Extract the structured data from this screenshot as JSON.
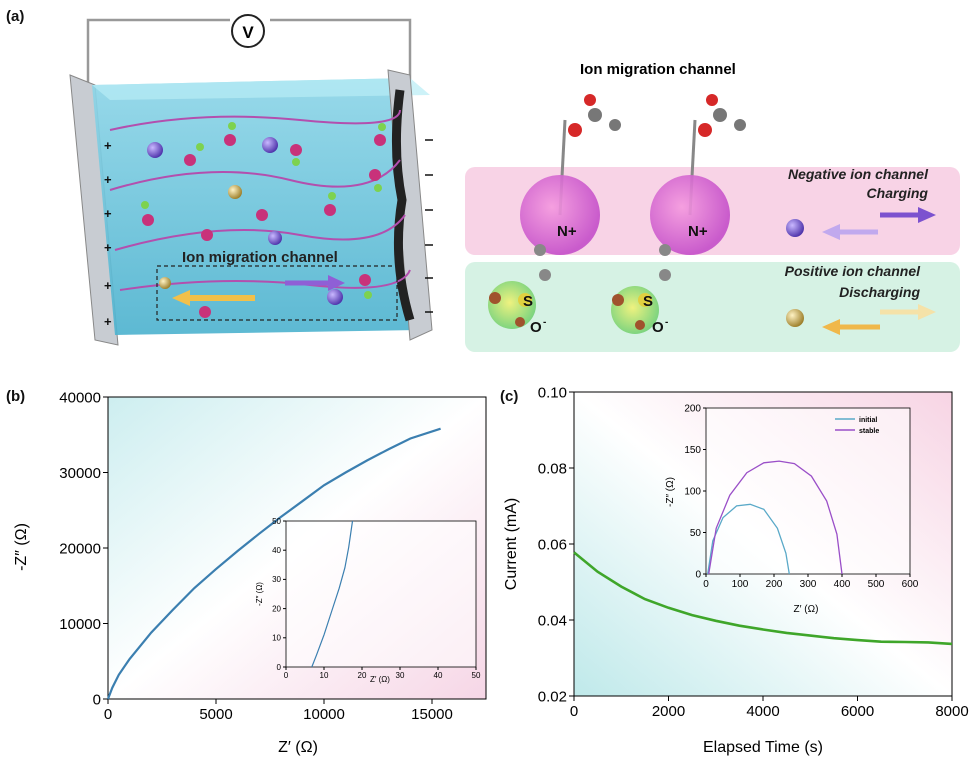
{
  "panel_labels": {
    "a": "(a)",
    "b": "(b)",
    "c": "(c)"
  },
  "panel_a": {
    "voltmeter": "V",
    "ion_channel_label": "Ion migration channel",
    "plus_signs": [
      "+",
      "+",
      "+",
      "+",
      "+",
      "+"
    ],
    "right_title": "Ion migration channel",
    "negative_channel": "Negative ion channel",
    "charging": "Charging",
    "positive_channel": "Positive ion channel",
    "discharging": "Discharging",
    "n_plus": "N+",
    "s_label": "S",
    "o_minus": "O",
    "minus_sup": "-"
  },
  "panel_b": {
    "ylabel": "-Z″ (Ω)",
    "xlabel": "Z′ (Ω)",
    "inset_ylabel": "-Z″ (Ω)",
    "inset_xlabel": "Z′ (Ω)"
  },
  "panel_c": {
    "ylabel": "Current (mA)",
    "xlabel": "Elapsed Time (s)",
    "inset_ylabel": "-Z″ (Ω)",
    "inset_xlabel": "Z′ (Ω)",
    "legend": [
      "initial",
      "stable"
    ]
  },
  "colors": {
    "nyquist_line": "#3b7fb0",
    "current_line": "#3fa62a",
    "initial": "#5aa9c8",
    "stable": "#9a4fc8",
    "negative_band": "#f8d3e6",
    "positive_band": "#d6f2e4"
  },
  "chart_data": [
    {
      "id": "b-main",
      "type": "line",
      "x": [
        0,
        200,
        500,
        1000,
        2000,
        3000,
        4000,
        5000,
        6000,
        7000,
        8000,
        9000,
        10000,
        11000,
        12000,
        13000,
        14000,
        15400
      ],
      "y": [
        0,
        1500,
        3200,
        5300,
        8800,
        11800,
        14700,
        17200,
        19600,
        21900,
        24100,
        26200,
        28300,
        30000,
        31600,
        33100,
        34500,
        35800
      ],
      "xlim": [
        0,
        17500
      ],
      "ylim": [
        0,
        40000
      ],
      "xticks": [
        0,
        5000,
        10000,
        15000
      ],
      "yticks": [
        0,
        10000,
        20000,
        30000,
        40000
      ],
      "xlabel": "Z′ (Ω)",
      "ylabel": "-Z″ (Ω)"
    },
    {
      "id": "b-inset",
      "type": "line",
      "x": [
        6.8,
        8,
        10,
        12,
        14,
        15.5,
        16.5,
        17.5
      ],
      "y": [
        0,
        4,
        11,
        19,
        27,
        34,
        41,
        50
      ],
      "xlim": [
        0,
        50
      ],
      "ylim": [
        0,
        50
      ],
      "xticks": [
        0,
        10,
        20,
        30,
        40,
        50
      ],
      "yticks": [
        0,
        10,
        20,
        30,
        40,
        50
      ],
      "xlabel": "Z′ (Ω)",
      "ylabel": "-Z″ (Ω)"
    },
    {
      "id": "c-main",
      "type": "line",
      "x": [
        0,
        500,
        1000,
        1500,
        2000,
        2500,
        3000,
        3500,
        4000,
        4500,
        5000,
        5500,
        6000,
        6500,
        7000,
        7500,
        8000
      ],
      "y": [
        0.0578,
        0.0527,
        0.0488,
        0.0455,
        0.0432,
        0.0413,
        0.0398,
        0.0385,
        0.0375,
        0.0366,
        0.0359,
        0.0352,
        0.0347,
        0.0343,
        0.0342,
        0.0341,
        0.0337
      ],
      "xlim": [
        0,
        8000
      ],
      "ylim": [
        0.02,
        0.1
      ],
      "xticks": [
        0,
        2000,
        4000,
        6000,
        8000
      ],
      "yticks": [
        0.02,
        0.04,
        0.06,
        0.08,
        0.1
      ],
      "xlabel": "Elapsed Time (s)",
      "ylabel": "Current (mA)"
    },
    {
      "id": "c-inset",
      "type": "line",
      "xlim": [
        0,
        600
      ],
      "ylim": [
        0,
        200
      ],
      "xticks": [
        0,
        100,
        200,
        300,
        400,
        500,
        600
      ],
      "yticks": [
        0,
        50,
        100,
        150,
        200
      ],
      "xlabel": "Z′ (Ω)",
      "ylabel": "-Z″ (Ω)",
      "series": [
        {
          "name": "initial",
          "x": [
            5,
            20,
            50,
            90,
            130,
            170,
            210,
            235,
            245
          ],
          "y": [
            0,
            40,
            68,
            82,
            84,
            78,
            55,
            25,
            0
          ]
        },
        {
          "name": "stable",
          "x": [
            8,
            30,
            70,
            120,
            170,
            215,
            260,
            310,
            355,
            385,
            400
          ],
          "y": [
            0,
            55,
            95,
            122,
            134,
            136,
            133,
            118,
            88,
            48,
            0
          ]
        }
      ]
    }
  ]
}
